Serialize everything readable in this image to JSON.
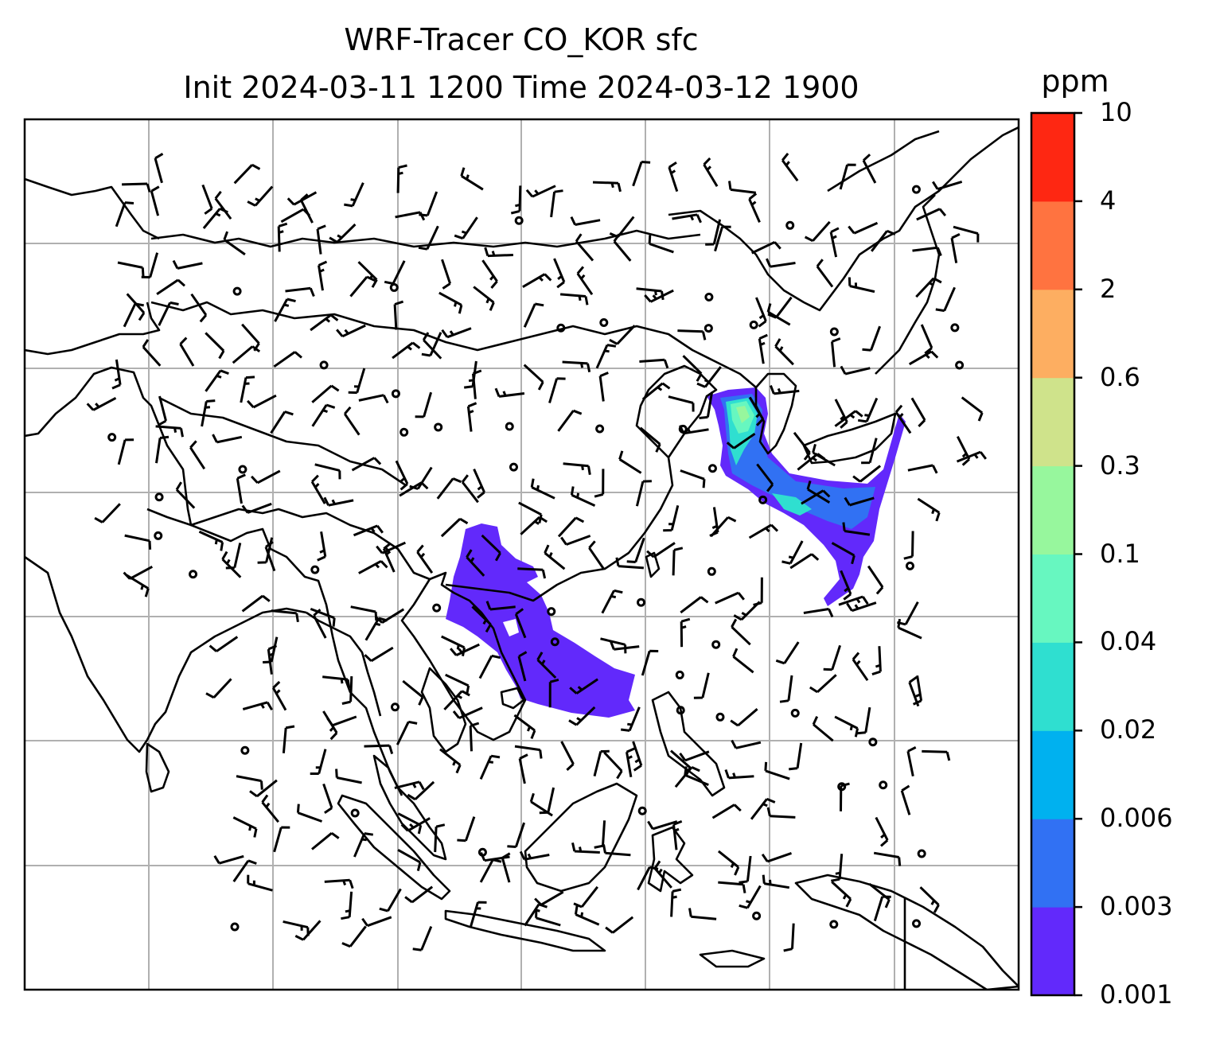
{
  "title": {
    "line1": "WRF-Tracer CO_KOR sfc",
    "line2": "Init 2024-03-11 1200 Time 2024-03-12 1900"
  },
  "colorbar": {
    "unit": "ppm",
    "ticks": [
      "0.001",
      "0.003",
      "0.006",
      "0.02",
      "0.04",
      "0.1",
      "0.3",
      "0.6",
      "2",
      "4",
      "10"
    ],
    "colors": [
      "#6229fb",
      "#3171f3",
      "#00b1ef",
      "#2fdfd0",
      "#67f7c0",
      "#97f79d",
      "#cfe38b",
      "#fdae61",
      "#ff7340",
      "#fe2712"
    ]
  },
  "map": {
    "gridlines": true,
    "coastline_color": "#000000",
    "wind_barbs": true,
    "tracer_plumes": [
      "korea-yellow-sea",
      "indochina-south-china"
    ]
  }
}
